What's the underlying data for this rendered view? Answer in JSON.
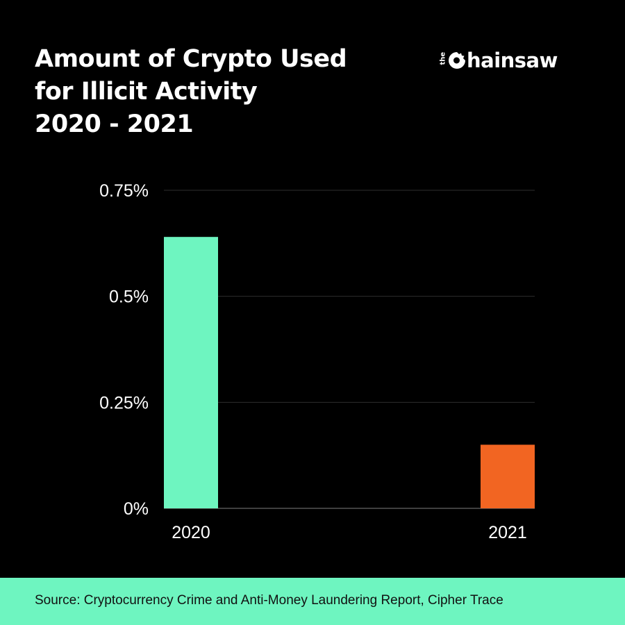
{
  "title_lines": [
    "Amount of Crypto Used",
    "for Illicit Activity",
    "2020 - 2021"
  ],
  "logo": {
    "prefix": "the",
    "icon": "saw-blade-icon",
    "word": "hainsaw"
  },
  "chart_data": {
    "type": "bar",
    "categories": [
      "2020",
      "2021"
    ],
    "values": [
      0.64,
      0.15
    ],
    "unit": "%",
    "ylim": [
      0,
      0.75
    ],
    "yticks": [
      0,
      0.25,
      0.5,
      0.75
    ],
    "ytick_labels": [
      "0%",
      "0.25%",
      "0.5%",
      "0.75%"
    ],
    "colors": [
      "#6ef5c0",
      "#f26522"
    ],
    "grid": true
  },
  "footer": {
    "source": "Source: Cryptocurrency Crime and Anti-Money Laundering Report, Cipher Trace"
  }
}
